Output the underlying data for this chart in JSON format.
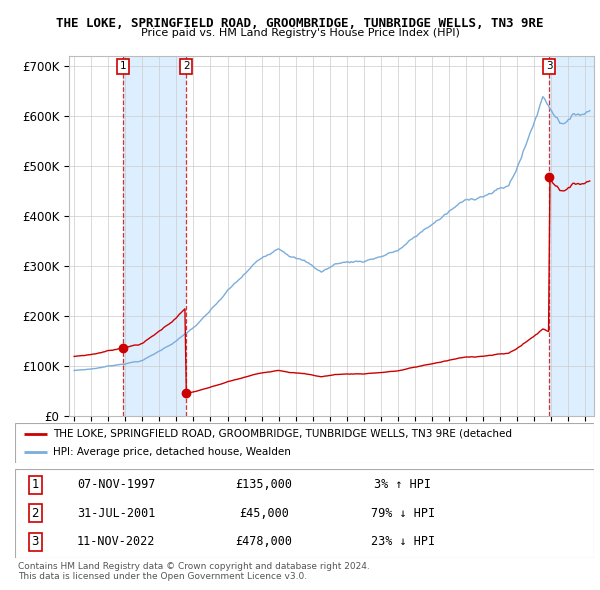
{
  "title_line1": "THE LOKE, SPRINGFIELD ROAD, GROOMBRIDGE, TUNBRIDGE WELLS, TN3 9RE",
  "title_line2": "Price paid vs. HM Land Registry's House Price Index (HPI)",
  "ylim": [
    0,
    720000
  ],
  "xlim_start": 1994.7,
  "xlim_end": 2025.5,
  "yticks": [
    0,
    100000,
    200000,
    300000,
    400000,
    500000,
    600000,
    700000
  ],
  "ytick_labels": [
    "£0",
    "£100K",
    "£200K",
    "£300K",
    "£400K",
    "£500K",
    "£600K",
    "£700K"
  ],
  "xticks": [
    1995,
    1996,
    1997,
    1998,
    1999,
    2000,
    2001,
    2002,
    2003,
    2004,
    2005,
    2006,
    2007,
    2008,
    2009,
    2010,
    2011,
    2012,
    2013,
    2014,
    2015,
    2016,
    2017,
    2018,
    2019,
    2020,
    2021,
    2022,
    2023,
    2024,
    2025
  ],
  "transactions": [
    {
      "num": 1,
      "date": "07-NOV-1997",
      "year": 1997.85,
      "price": 135000,
      "rel": "3% ↑ HPI"
    },
    {
      "num": 2,
      "date": "31-JUL-2001",
      "year": 2001.58,
      "price": 45000,
      "rel": "79% ↓ HPI"
    },
    {
      "num": 3,
      "date": "11-NOV-2022",
      "year": 2022.86,
      "price": 478000,
      "rel": "23% ↓ HPI"
    }
  ],
  "legend_line1": "THE LOKE, SPRINGFIELD ROAD, GROOMBRIDGE, TUNBRIDGE WELLS, TN3 9RE (detached",
  "legend_line2": "HPI: Average price, detached house, Wealden",
  "footnote": "Contains HM Land Registry data © Crown copyright and database right 2024.\nThis data is licensed under the Open Government Licence v3.0.",
  "property_line_color": "#cc0000",
  "hpi_line_color": "#7aaddb",
  "shade_color": "#ddeeff",
  "bg_color": "#ffffff",
  "grid_color": "#cccccc"
}
